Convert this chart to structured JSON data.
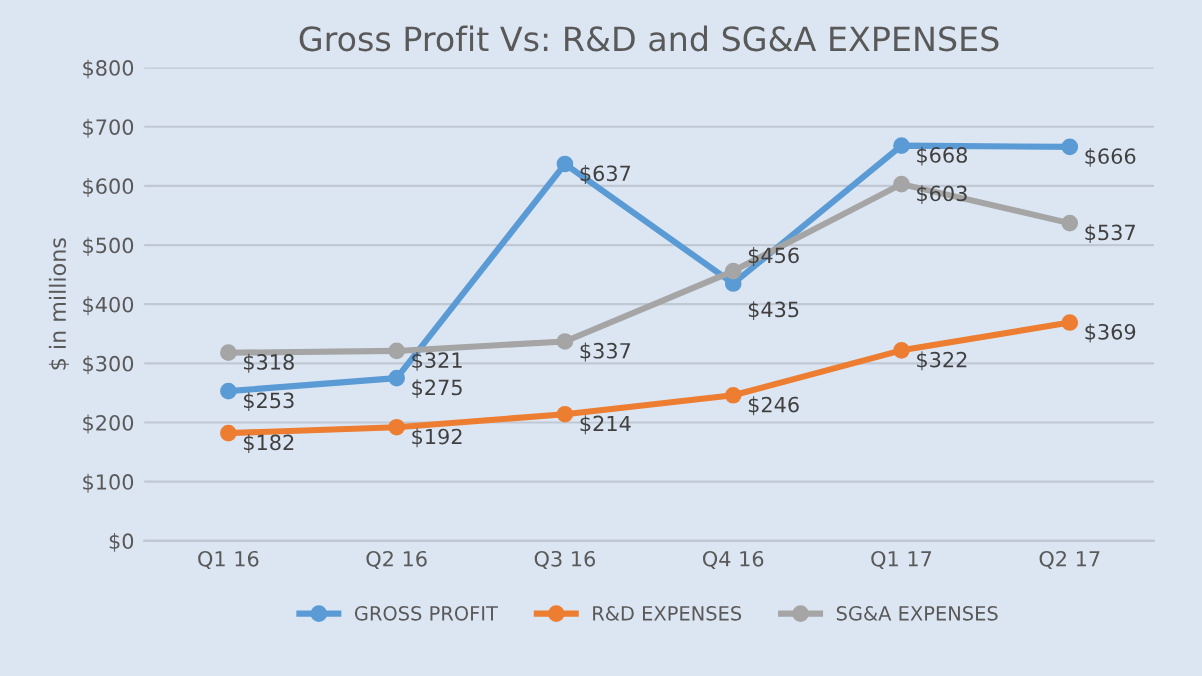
{
  "chart_data": {
    "type": "line",
    "title": "Gross Profit Vs: R&D and SG&A EXPENSES",
    "ylabel": "$ in millions",
    "categories": [
      "Q1 16",
      "Q2 16",
      "Q3 16",
      "Q4 16",
      "Q1 17",
      "Q2 17"
    ],
    "series": [
      {
        "name": "GROSS PROFIT",
        "color": "#5b9bd5",
        "values": [
          253,
          275,
          637,
          435,
          668,
          666
        ],
        "value_labels": [
          "$253",
          "$275",
          "$637",
          "$435",
          "$668",
          "$666"
        ]
      },
      {
        "name": "R&D EXPENSES",
        "color": "#ed7d31",
        "values": [
          182,
          192,
          214,
          246,
          322,
          369
        ],
        "value_labels": [
          "$182",
          "$192",
          "$214",
          "$246",
          "$322",
          "$369"
        ]
      },
      {
        "name": "SG&A EXPENSES",
        "color": "#a5a5a5",
        "values": [
          318,
          321,
          337,
          456,
          603,
          537
        ],
        "value_labels": [
          "$318",
          "$321",
          "$337",
          "$456",
          "$603",
          "$537"
        ]
      }
    ],
    "ylim": [
      0,
      800
    ],
    "yticks": [
      {
        "value": 0,
        "label": "$0"
      },
      {
        "value": 100,
        "label": "$100"
      },
      {
        "value": 200,
        "label": "$200"
      },
      {
        "value": 300,
        "label": "$300"
      },
      {
        "value": 400,
        "label": "$400"
      },
      {
        "value": 500,
        "label": "$500"
      },
      {
        "value": 600,
        "label": "$600"
      },
      {
        "value": 700,
        "label": "$700"
      },
      {
        "value": 800,
        "label": "$800"
      }
    ],
    "grid": "y",
    "legend": "bottom",
    "marker": "circle",
    "line_style": "solid"
  }
}
